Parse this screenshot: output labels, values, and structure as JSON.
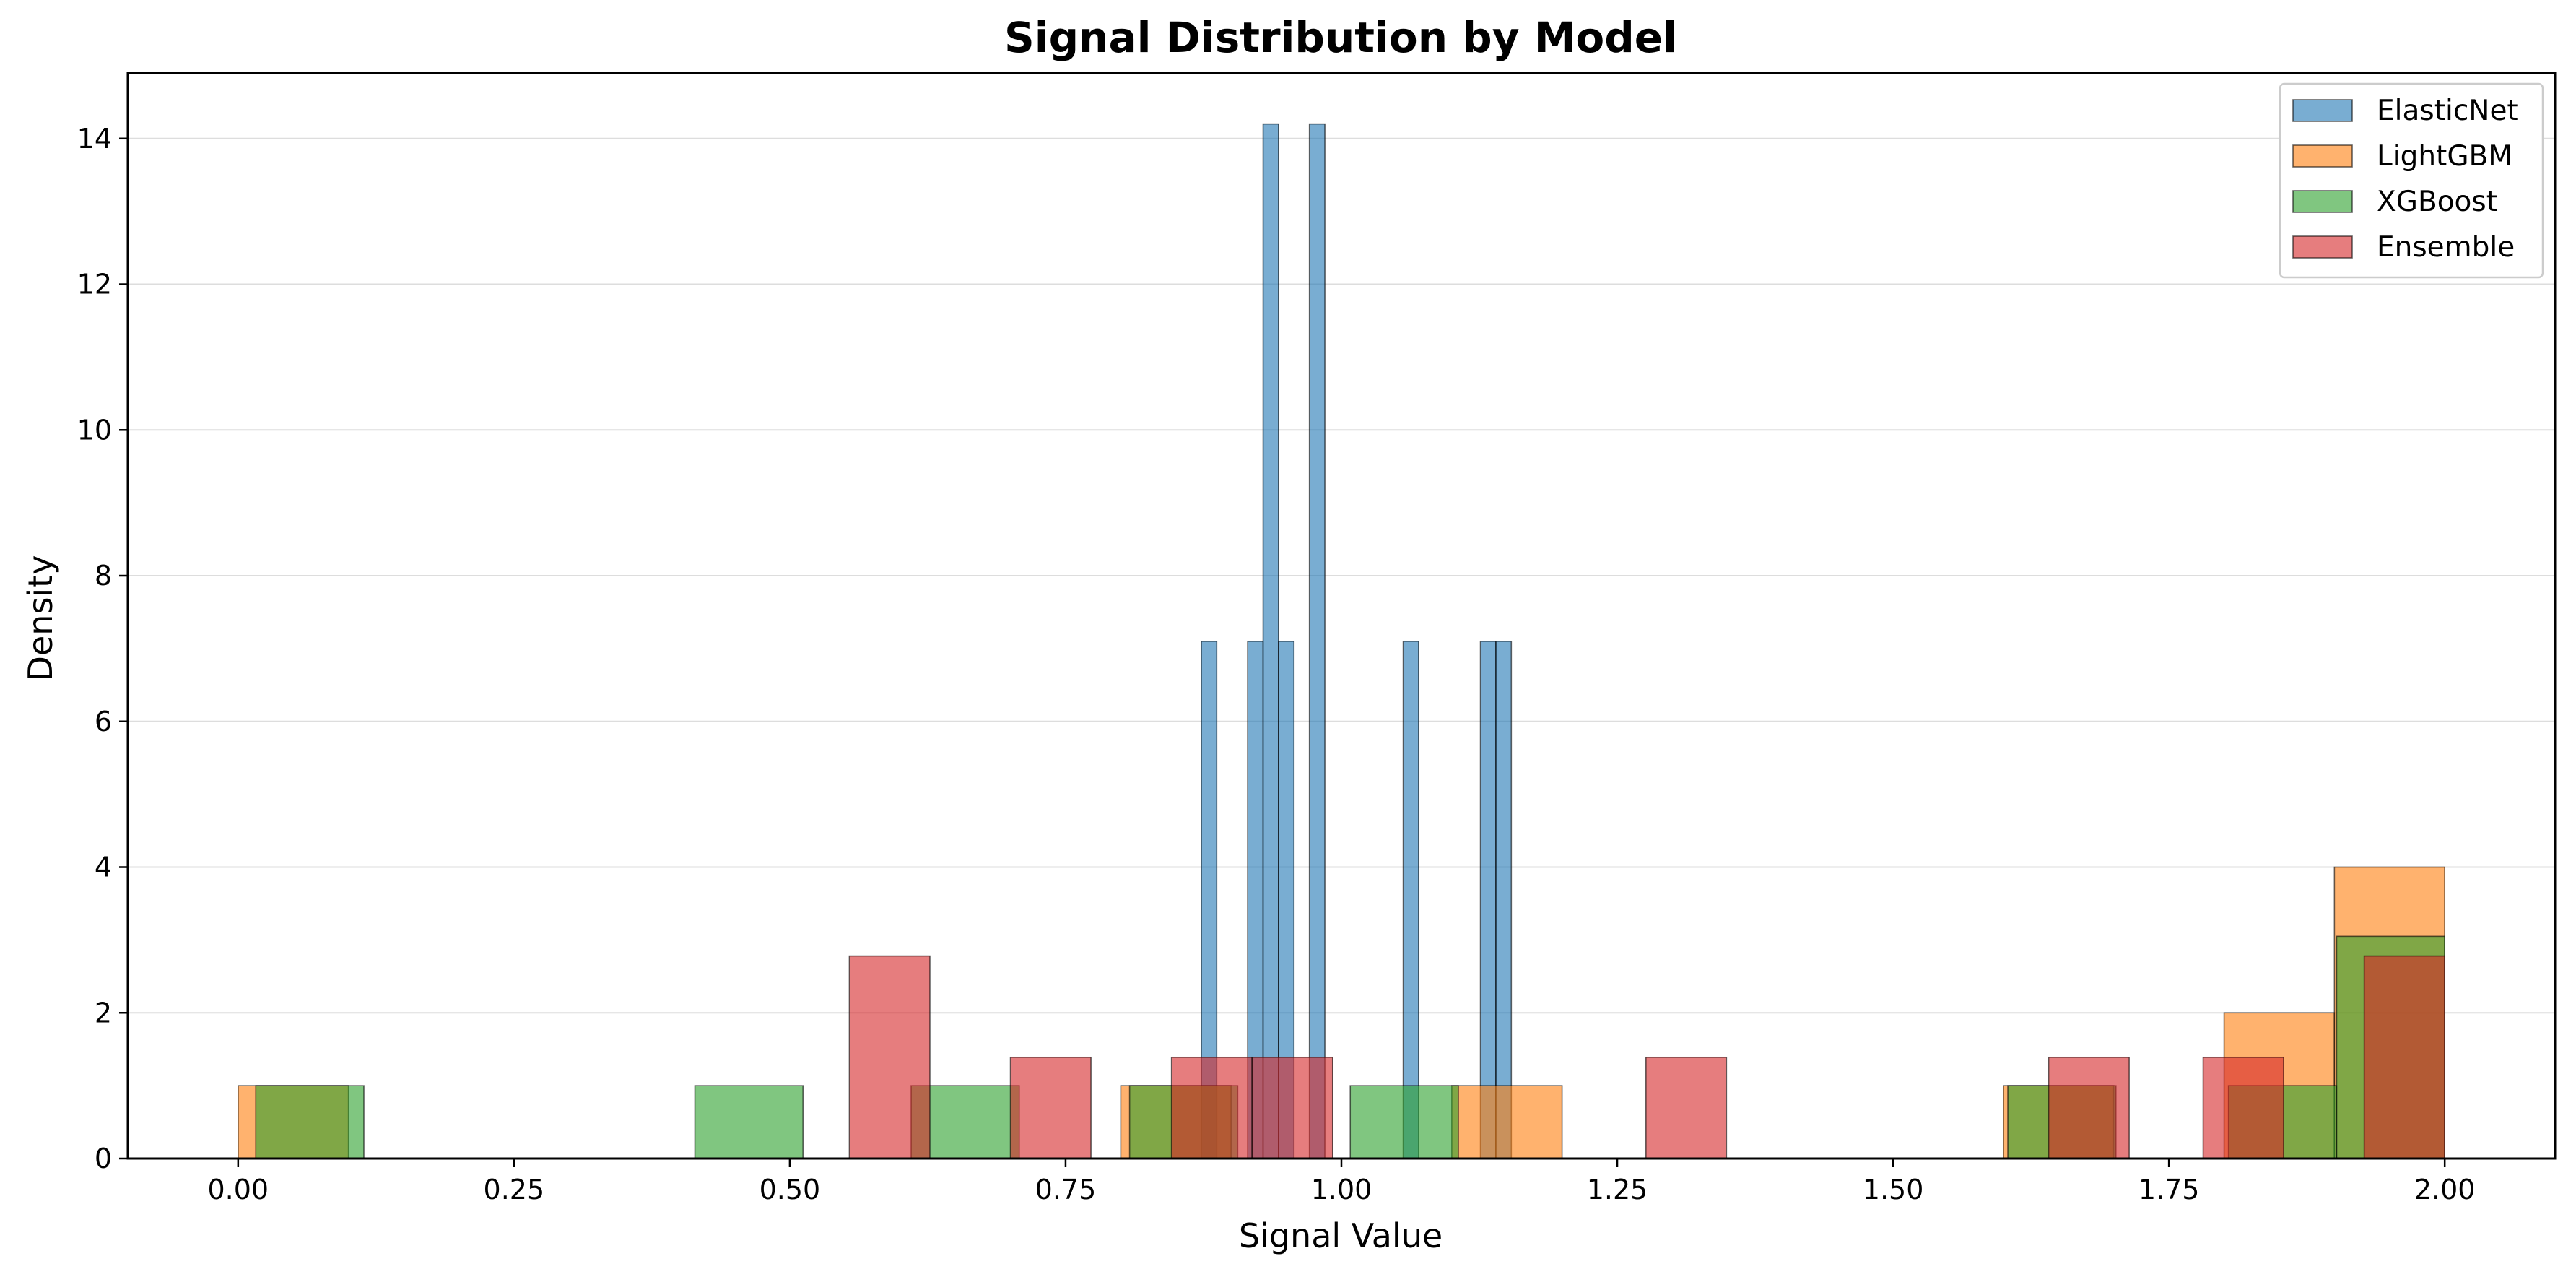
{
  "chart_data": {
    "type": "bar",
    "title": "Signal Distribution by Model",
    "xlabel": "Signal Value",
    "ylabel": "Density",
    "xlim": [
      -0.1,
      2.1
    ],
    "ylim": [
      0,
      14.9
    ],
    "xticks": [
      "0.00",
      "0.25",
      "0.50",
      "0.75",
      "1.00",
      "1.25",
      "1.50",
      "1.75",
      "2.00"
    ],
    "yticks": [
      "0",
      "2",
      "4",
      "6",
      "8",
      "10",
      "12",
      "14"
    ],
    "grid": "y",
    "legend": "top-right",
    "series": [
      {
        "name": "ElasticNet",
        "color": "#1f77b4",
        "bins": [
          {
            "x0": 0.873,
            "x1": 0.887,
            "value": 7.1
          },
          {
            "x0": 0.915,
            "x1": 0.929,
            "value": 7.1
          },
          {
            "x0": 0.929,
            "x1": 0.943,
            "value": 14.2
          },
          {
            "x0": 0.943,
            "x1": 0.957,
            "value": 7.1
          },
          {
            "x0": 0.971,
            "x1": 0.985,
            "value": 14.2
          },
          {
            "x0": 1.056,
            "x1": 1.07,
            "value": 7.1
          },
          {
            "x0": 1.126,
            "x1": 1.14,
            "value": 7.1
          },
          {
            "x0": 1.14,
            "x1": 1.154,
            "value": 7.1
          }
        ]
      },
      {
        "name": "LightGBM",
        "color": "#ff7f0e",
        "bins": [
          {
            "x0": 0.0,
            "x1": 0.1,
            "value": 1.0
          },
          {
            "x0": 0.8,
            "x1": 0.9,
            "value": 1.0
          },
          {
            "x0": 1.1,
            "x1": 1.2,
            "value": 1.0
          },
          {
            "x0": 1.6,
            "x1": 1.7,
            "value": 1.0
          },
          {
            "x0": 1.8,
            "x1": 1.9,
            "value": 2.0
          },
          {
            "x0": 1.9,
            "x1": 2.0,
            "value": 4.0
          }
        ]
      },
      {
        "name": "XGBoost",
        "color": "#2ca02c",
        "bins": [
          {
            "x0": 0.016,
            "x1": 0.114,
            "value": 1.0
          },
          {
            "x0": 0.414,
            "x1": 0.512,
            "value": 1.0
          },
          {
            "x0": 0.61,
            "x1": 0.708,
            "value": 1.0
          },
          {
            "x0": 0.808,
            "x1": 0.906,
            "value": 1.0
          },
          {
            "x0": 1.008,
            "x1": 1.106,
            "value": 1.0
          },
          {
            "x0": 1.604,
            "x1": 1.702,
            "value": 1.0
          },
          {
            "x0": 1.804,
            "x1": 1.902,
            "value": 1.0
          },
          {
            "x0": 1.902,
            "x1": 2.0,
            "value": 3.05
          }
        ]
      },
      {
        "name": "Ensemble",
        "color": "#d62728",
        "bins": [
          {
            "x0": 0.554,
            "x1": 0.627,
            "value": 2.78
          },
          {
            "x0": 0.7,
            "x1": 0.773,
            "value": 1.39
          },
          {
            "x0": 0.846,
            "x1": 0.919,
            "value": 1.39
          },
          {
            "x0": 0.919,
            "x1": 0.992,
            "value": 1.39
          },
          {
            "x0": 1.276,
            "x1": 1.349,
            "value": 1.39
          },
          {
            "x0": 1.641,
            "x1": 1.714,
            "value": 1.39
          },
          {
            "x0": 1.781,
            "x1": 1.854,
            "value": 1.39
          },
          {
            "x0": 1.927,
            "x1": 2.0,
            "value": 2.78
          }
        ]
      }
    ]
  }
}
